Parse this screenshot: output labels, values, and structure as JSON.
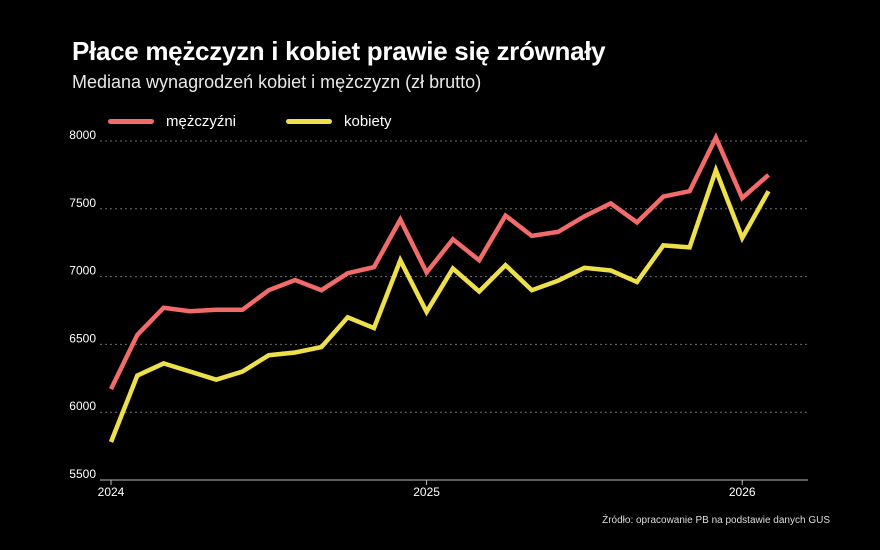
{
  "header": {
    "title": "Płace mężczyzn i kobiet prawie się zrównały",
    "subtitle": "Mediana wynagrodzeń kobiet i mężczyzn (zł brutto)"
  },
  "legend": [
    {
      "label": "mężczyźni",
      "color": "#f26b6b"
    },
    {
      "label": "kobiety",
      "color": "#ede04a"
    }
  ],
  "source": "Źródło: opracowanie PB na podstawie danych GUS",
  "chart_data": {
    "type": "line",
    "title": "Płace mężczyzn i kobiet prawie się zrównały",
    "subtitle": "Mediana wynagrodzeń kobiet i mężczyzn (zł brutto)",
    "xlabel": "",
    "ylabel": "",
    "ylim": [
      5500,
      8000
    ],
    "yticks": [
      5500,
      6000,
      6500,
      7000,
      7500,
      8000
    ],
    "xticks": [
      "2024",
      "2025",
      "2026"
    ],
    "xtick_positions": [
      0,
      12,
      24
    ],
    "grid": "horizontal dashed",
    "legend_position": "top-left",
    "x": [
      0,
      1,
      2,
      3,
      4,
      5,
      6,
      7,
      8,
      9,
      10,
      11,
      12,
      13,
      14,
      15,
      16,
      17,
      18,
      19,
      20,
      21,
      22,
      23,
      24,
      25
    ],
    "series": [
      {
        "name": "mężczyźni",
        "color": "#f26b6b",
        "values": [
          6170,
          6570,
          6770,
          6745,
          6755,
          6755,
          6900,
          6975,
          6900,
          7025,
          7070,
          7420,
          7030,
          7275,
          7120,
          7450,
          7300,
          7330,
          7445,
          7540,
          7400,
          7590,
          7630,
          8025,
          7580,
          7750
        ]
      },
      {
        "name": "kobiety",
        "color": "#ede04a",
        "values": [
          5780,
          6270,
          6360,
          6300,
          6240,
          6300,
          6420,
          6440,
          6480,
          6700,
          6620,
          7120,
          6740,
          7060,
          6890,
          7085,
          6900,
          6970,
          7065,
          7045,
          6960,
          7230,
          7215,
          7785,
          7285,
          7630
        ]
      }
    ]
  }
}
